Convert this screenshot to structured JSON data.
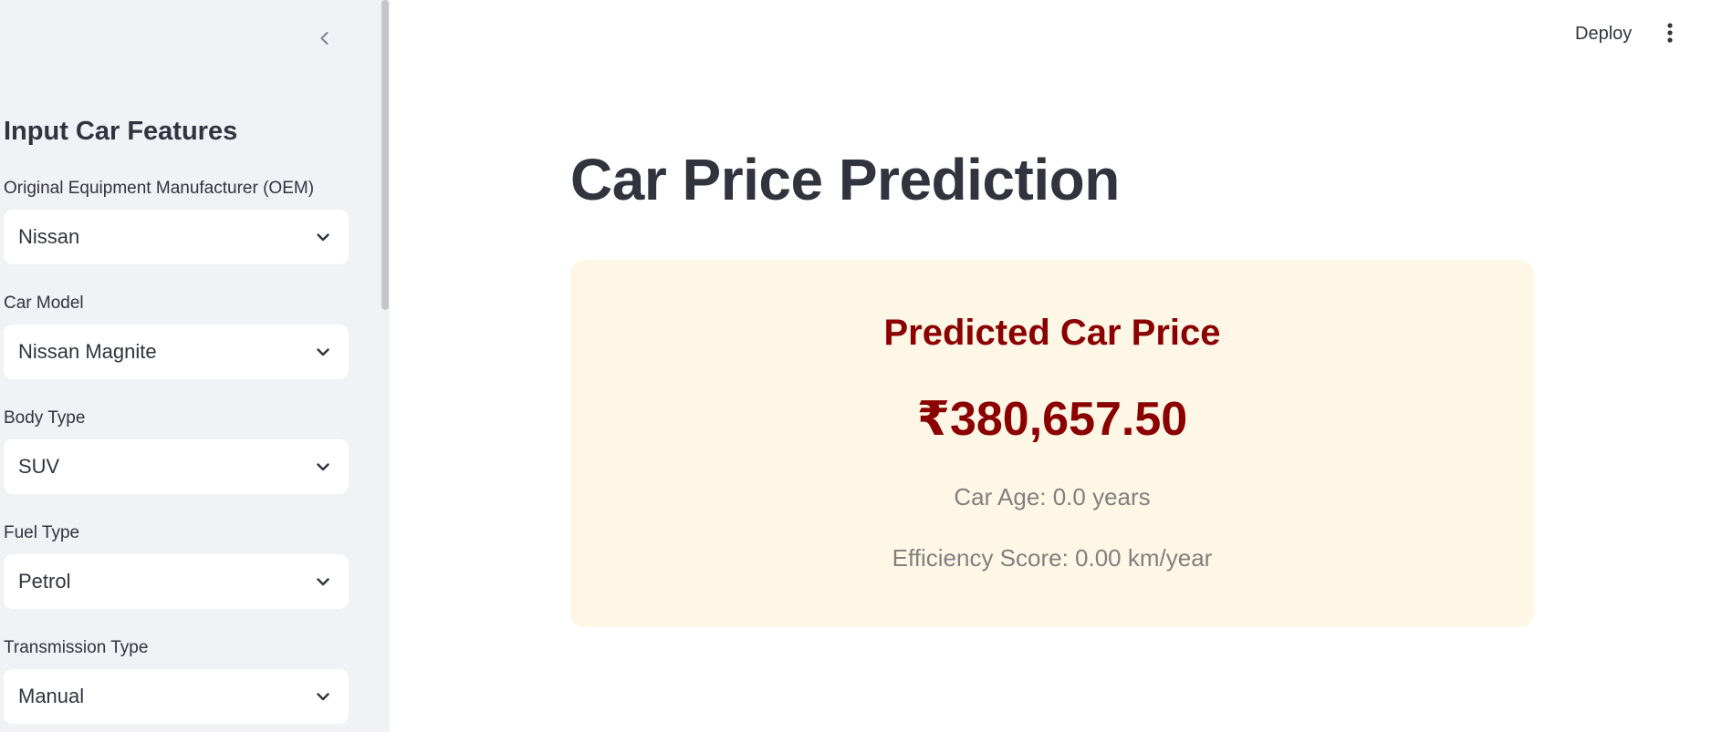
{
  "sidebar": {
    "title": "Input Car Features",
    "fields": [
      {
        "label": "Original Equipment Manufacturer (OEM)",
        "value": "Nissan"
      },
      {
        "label": "Car Model",
        "value": "Nissan Magnite"
      },
      {
        "label": "Body Type",
        "value": "SUV"
      },
      {
        "label": "Fuel Type",
        "value": "Petrol"
      },
      {
        "label": "Transmission Type",
        "value": "Manual"
      }
    ]
  },
  "header": {
    "deploy_label": "Deploy"
  },
  "main": {
    "title": "Car Price Prediction",
    "result": {
      "heading": "Predicted Car Price",
      "price": "₹380,657.50",
      "car_age": "Car Age: 0.0 years",
      "efficiency": "Efficiency Score: 0.00 km/year"
    }
  },
  "icons": {
    "collapse": "chevron-left-icon",
    "dropdown": "chevron-down-icon",
    "menu": "more-vertical-icon"
  },
  "colors": {
    "sidebar_bg": "#f0f2f6",
    "card_bg": "#fff7e6",
    "accent": "#8b0000",
    "muted": "#808080",
    "text": "#31333f"
  }
}
